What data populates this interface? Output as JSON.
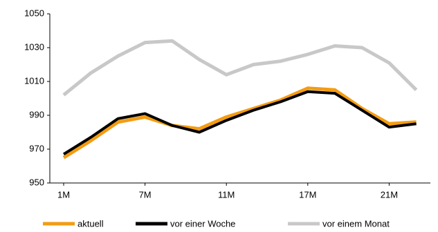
{
  "chart_data": {
    "type": "line",
    "categories": [
      "1M",
      null,
      null,
      "7M",
      null,
      null,
      "11M",
      null,
      null,
      "17M",
      null,
      null,
      "21M",
      null
    ],
    "series": [
      {
        "name": "aktuell",
        "color": "#f39c12",
        "values": [
          965,
          975,
          986,
          989,
          984,
          982,
          989,
          994,
          999,
          1006,
          1005,
          994,
          985,
          986
        ]
      },
      {
        "name": "vor einer Woche",
        "color": "#000000",
        "values": [
          967,
          977,
          988,
          991,
          984,
          980,
          987,
          993,
          998,
          1004,
          1003,
          993,
          983,
          985
        ]
      },
      {
        "name": "vor einem Monat",
        "color": "#c8c8c8",
        "values": [
          1002,
          1015,
          1025,
          1033,
          1034,
          1023,
          1014,
          1020,
          1022,
          1026,
          1031,
          1030,
          1021,
          1005
        ]
      }
    ],
    "ylim": [
      950,
      1050
    ],
    "yticks": [
      950,
      970,
      990,
      1010,
      1030,
      1050
    ],
    "grid": false,
    "legend": "bottom"
  }
}
